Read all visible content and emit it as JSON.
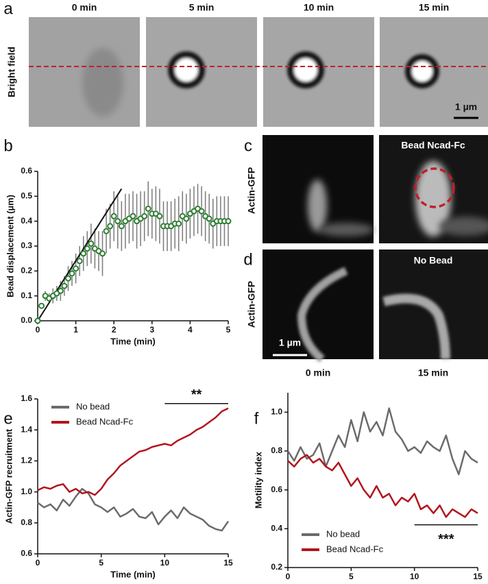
{
  "panel_labels": [
    "a",
    "b",
    "c",
    "d",
    "e",
    "f"
  ],
  "panel_a": {
    "times": [
      "0 min",
      "5 min",
      "10 min",
      "15 min"
    ],
    "row_label": "Bright field",
    "scale_bar": "1 µm"
  },
  "panel_c": {
    "row_label": "Actin-GFP",
    "image_label": "Bead Ncad-Fc"
  },
  "panel_d": {
    "row_label": "Actin-GFP",
    "image_label": "No Bead",
    "scale_bar": "1 µm",
    "times": [
      "0 min",
      "15 min"
    ]
  },
  "chart_data": [
    {
      "type": "scatter",
      "xlabel": "Time (min)",
      "ylabel": "Bead displacement (µm)",
      "color": "#2e7d32",
      "error_color": "#7a7a7a",
      "x": [
        0,
        0.1,
        0.2,
        0.3,
        0.4,
        0.5,
        0.6,
        0.7,
        0.8,
        0.9,
        1.0,
        1.1,
        1.2,
        1.3,
        1.4,
        1.5,
        1.6,
        1.7,
        1.8,
        1.9,
        2.0,
        2.1,
        2.2,
        2.3,
        2.4,
        2.5,
        2.6,
        2.7,
        2.8,
        2.9,
        3.0,
        3.1,
        3.2,
        3.3,
        3.4,
        3.5,
        3.6,
        3.7,
        3.8,
        3.9,
        4.0,
        4.1,
        4.2,
        4.3,
        4.4,
        4.5,
        4.6,
        4.7,
        4.8,
        4.9,
        5.0
      ],
      "values": [
        0.0,
        0.06,
        0.1,
        0.09,
        0.1,
        0.11,
        0.12,
        0.14,
        0.17,
        0.19,
        0.21,
        0.24,
        0.27,
        0.29,
        0.31,
        0.29,
        0.28,
        0.27,
        0.36,
        0.38,
        0.42,
        0.4,
        0.38,
        0.4,
        0.41,
        0.42,
        0.4,
        0.41,
        0.42,
        0.45,
        0.43,
        0.43,
        0.42,
        0.38,
        0.38,
        0.38,
        0.39,
        0.39,
        0.42,
        0.41,
        0.43,
        0.44,
        0.45,
        0.44,
        0.42,
        0.41,
        0.39,
        0.4,
        0.4,
        0.4,
        0.4
      ],
      "errors": [
        0,
        0.01,
        0.02,
        0.02,
        0.03,
        0.03,
        0.04,
        0.04,
        0.05,
        0.05,
        0.06,
        0.06,
        0.07,
        0.07,
        0.08,
        0.08,
        0.08,
        0.09,
        0.09,
        0.09,
        0.1,
        0.11,
        0.1,
        0.11,
        0.1,
        0.1,
        0.11,
        0.11,
        0.1,
        0.11,
        0.1,
        0.11,
        0.11,
        0.1,
        0.1,
        0.1,
        0.1,
        0.11,
        0.1,
        0.1,
        0.1,
        0.1,
        0.1,
        0.1,
        0.1,
        0.1,
        0.1,
        0.1,
        0.1,
        0.1,
        0.1
      ],
      "fit": {
        "x": [
          0,
          2.2
        ],
        "values": [
          0,
          0.53
        ],
        "color": "#111111"
      },
      "xlim": [
        0,
        5
      ],
      "xticks": [
        0,
        1,
        2,
        3,
        4,
        5
      ],
      "ylim": [
        0,
        0.6
      ],
      "yticks": [
        {
          "value": 0,
          "label": "0.0"
        },
        0.1,
        0.2,
        0.3,
        0.4,
        0.5,
        0.6
      ]
    },
    {
      "type": "line",
      "xlabel": "Time (min)",
      "ylabel": "Actin-GFP recruitment",
      "legend": "upper left",
      "x": [
        0,
        0.5,
        1,
        1.5,
        2,
        2.5,
        3,
        3.5,
        4,
        4.5,
        5,
        5.5,
        6,
        6.5,
        7,
        7.5,
        8,
        8.5,
        9,
        9.5,
        10,
        10.5,
        11,
        11.5,
        12,
        12.5,
        13,
        13.5,
        14,
        14.5,
        15
      ],
      "series": [
        {
          "name": "No bead",
          "color": "#6b6b6b",
          "values": [
            0.93,
            0.9,
            0.92,
            0.88,
            0.95,
            0.91,
            0.97,
            1.02,
            0.99,
            0.92,
            0.9,
            0.87,
            0.9,
            0.84,
            0.86,
            0.89,
            0.84,
            0.83,
            0.87,
            0.79,
            0.84,
            0.88,
            0.83,
            0.9,
            0.86,
            0.84,
            0.82,
            0.78,
            0.76,
            0.75,
            0.81
          ]
        },
        {
          "name": "Bead Ncad-Fc",
          "color": "#b3141c",
          "values": [
            1.01,
            1.03,
            1.02,
            1.04,
            1.05,
            1.0,
            1.02,
            0.99,
            1.0,
            0.98,
            1.02,
            1.08,
            1.12,
            1.17,
            1.2,
            1.23,
            1.26,
            1.27,
            1.29,
            1.3,
            1.31,
            1.3,
            1.33,
            1.35,
            1.37,
            1.4,
            1.42,
            1.45,
            1.48,
            1.52,
            1.54
          ]
        }
      ],
      "significance": {
        "label": "**",
        "x": [
          10,
          15
        ],
        "y": 1.57
      },
      "xlim": [
        0,
        15
      ],
      "xticks": [
        0,
        5,
        10,
        15
      ],
      "ylim": [
        0.6,
        1.6
      ],
      "yticks": [
        0.6,
        0.8,
        {
          "value": 1,
          "label": "1.0"
        },
        1.2,
        1.4,
        1.6
      ]
    },
    {
      "type": "line",
      "xlabel": "Time (min)",
      "ylabel": "Motility index",
      "legend": "lower left",
      "x": [
        0,
        0.5,
        1,
        1.5,
        2,
        2.5,
        3,
        3.5,
        4,
        4.5,
        5,
        5.5,
        6,
        6.5,
        7,
        7.5,
        8,
        8.5,
        9,
        9.5,
        10,
        10.5,
        11,
        11.5,
        12,
        12.5,
        13,
        13.5,
        14,
        14.5,
        15
      ],
      "series": [
        {
          "name": "No bead",
          "color": "#6b6b6b",
          "values": [
            0.8,
            0.75,
            0.82,
            0.76,
            0.78,
            0.84,
            0.72,
            0.8,
            0.88,
            0.82,
            0.96,
            0.85,
            1.0,
            0.9,
            0.95,
            0.88,
            1.02,
            0.9,
            0.86,
            0.8,
            0.82,
            0.79,
            0.85,
            0.82,
            0.8,
            0.88,
            0.76,
            0.68,
            0.8,
            0.76,
            0.74
          ]
        },
        {
          "name": "Bead Ncad-Fc",
          "color": "#b3141c",
          "values": [
            0.75,
            0.72,
            0.76,
            0.78,
            0.74,
            0.76,
            0.72,
            0.7,
            0.74,
            0.68,
            0.62,
            0.66,
            0.6,
            0.56,
            0.62,
            0.56,
            0.58,
            0.52,
            0.56,
            0.54,
            0.58,
            0.5,
            0.52,
            0.48,
            0.52,
            0.46,
            0.5,
            0.48,
            0.46,
            0.5,
            0.48
          ]
        }
      ],
      "significance": {
        "label": "***",
        "x": [
          10,
          15
        ],
        "y": 0.42
      },
      "xlim": [
        0,
        15
      ],
      "xticks": [
        0,
        5,
        10,
        15
      ],
      "ylim": [
        0.2,
        1.1
      ],
      "yticks": [
        0.2,
        0.4,
        0.6,
        0.8,
        {
          "value": 1,
          "label": "1.0"
        }
      ]
    }
  ]
}
